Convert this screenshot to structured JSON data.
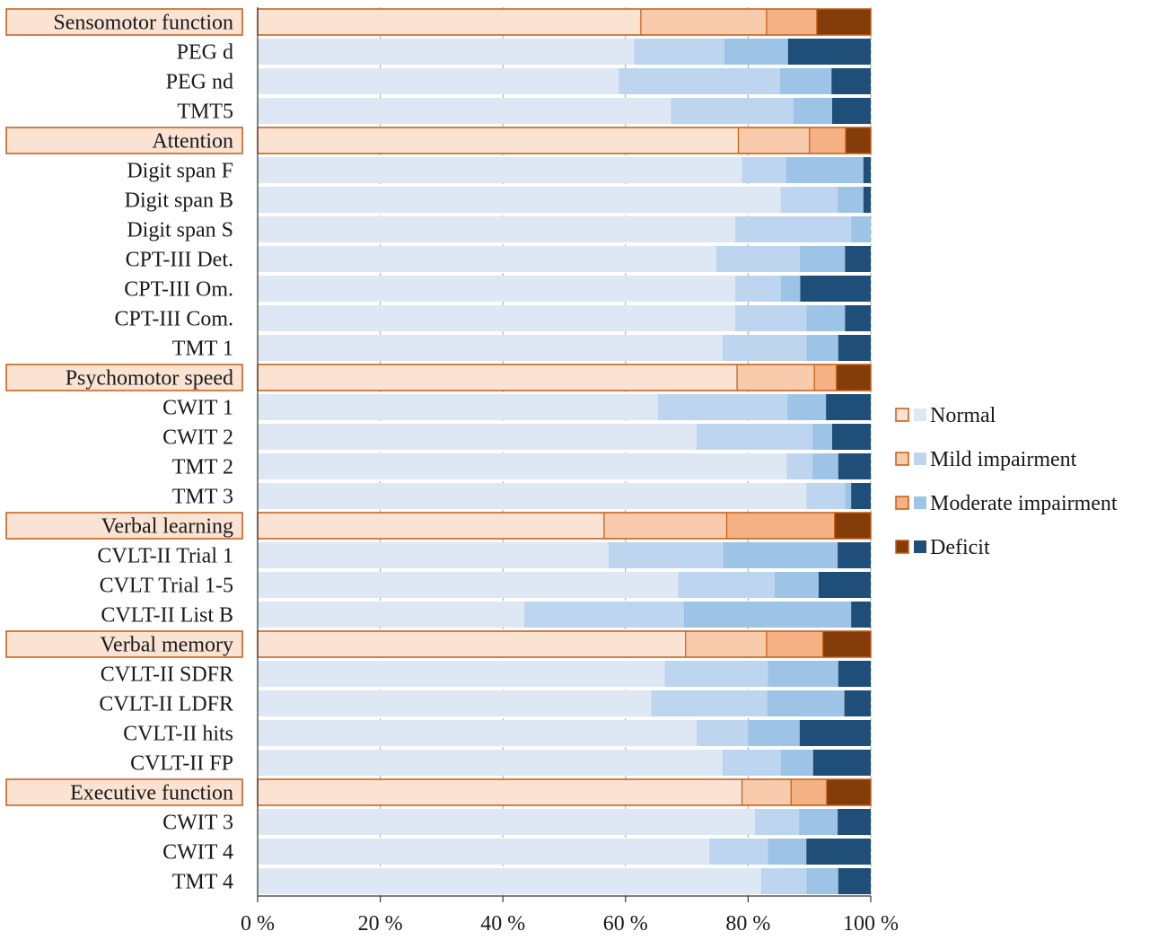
{
  "chart_data": {
    "type": "bar",
    "orientation": "horizontal",
    "stacked": true,
    "xlim": [
      0,
      100
    ],
    "x_ticks": [
      {
        "value": 0,
        "label": "0 %"
      },
      {
        "value": 20,
        "label": "20 %"
      },
      {
        "value": 40,
        "label": "40 %"
      },
      {
        "value": 60,
        "label": "60 %"
      },
      {
        "value": 80,
        "label": "80 %"
      },
      {
        "value": 100,
        "label": "100 %"
      }
    ],
    "grid": true,
    "series": [
      {
        "name": "Normal",
        "domain_color": "#fbe3d4",
        "test_color": "#dde8f4"
      },
      {
        "name": "Mild impairment",
        "domain_color": "#f8cbac",
        "test_color": "#bdd5ee"
      },
      {
        "name": "Moderate impairment",
        "domain_color": "#f4b183",
        "test_color": "#9dc3e6"
      },
      {
        "name": "Deficit",
        "domain_color": "#843c0b",
        "test_color": "#1f4e79"
      }
    ],
    "legend": {
      "position": "right"
    },
    "domain_border_color": "#c55a11",
    "categories": [
      {
        "label": "Sensomotor function",
        "domain": true,
        "values": [
          62.5,
          20.5,
          8.2,
          8.8
        ]
      },
      {
        "label": "PEG d",
        "domain": false,
        "values": [
          61.4,
          14.7,
          10.4,
          13.5
        ]
      },
      {
        "label": "PEG nd",
        "domain": false,
        "values": [
          58.9,
          26.3,
          8.4,
          6.4
        ]
      },
      {
        "label": "TMT5",
        "domain": false,
        "values": [
          67.4,
          20.0,
          6.3,
          6.3
        ]
      },
      {
        "label": "Attention",
        "domain": true,
        "values": [
          78.4,
          11.6,
          5.9,
          4.1
        ]
      },
      {
        "label": "Digit span F",
        "domain": false,
        "values": [
          79.0,
          7.2,
          12.6,
          1.2
        ]
      },
      {
        "label": "Digit span B",
        "domain": false,
        "values": [
          85.3,
          9.3,
          4.2,
          1.2
        ]
      },
      {
        "label": "Digit span S",
        "domain": false,
        "values": [
          77.9,
          18.9,
          3.2,
          0
        ]
      },
      {
        "label": "CPT-III Det.",
        "domain": false,
        "values": [
          74.8,
          13.6,
          7.4,
          4.2
        ]
      },
      {
        "label": "CPT-III Om.",
        "domain": false,
        "values": [
          77.9,
          7.4,
          3.2,
          11.5
        ]
      },
      {
        "label": "CPT-III Com.",
        "domain": false,
        "values": [
          77.9,
          11.6,
          6.3,
          4.2
        ]
      },
      {
        "label": "TMT 1",
        "domain": false,
        "values": [
          75.8,
          13.7,
          5.2,
          5.3
        ]
      },
      {
        "label": "Psychomotor speed",
        "domain": true,
        "values": [
          78.2,
          12.6,
          3.6,
          5.6
        ]
      },
      {
        "label": "CWIT 1",
        "domain": false,
        "values": [
          65.3,
          21.1,
          6.3,
          7.3
        ]
      },
      {
        "label": "CWIT 2",
        "domain": false,
        "values": [
          71.6,
          18.9,
          3.2,
          6.3
        ]
      },
      {
        "label": "TMT 2",
        "domain": false,
        "values": [
          86.3,
          4.2,
          4.2,
          5.3
        ]
      },
      {
        "label": "TMT 3",
        "domain": false,
        "values": [
          89.5,
          6.3,
          1.0,
          3.2
        ]
      },
      {
        "label": "Verbal learning",
        "domain": true,
        "values": [
          56.5,
          20.0,
          17.6,
          5.9
        ]
      },
      {
        "label": "CVLT-II Trial 1",
        "domain": false,
        "values": [
          57.2,
          18.7,
          18.7,
          5.4
        ]
      },
      {
        "label": "CVLT Trial 1-5",
        "domain": false,
        "values": [
          68.6,
          15.7,
          7.2,
          8.5
        ]
      },
      {
        "label": "CVLT-II List B",
        "domain": false,
        "values": [
          43.5,
          26.0,
          27.3,
          3.2
        ]
      },
      {
        "label": "Verbal memory",
        "domain": true,
        "values": [
          69.8,
          13.2,
          9.2,
          7.8
        ]
      },
      {
        "label": "CVLT-II SDFR",
        "domain": false,
        "values": [
          66.4,
          16.8,
          11.5,
          5.3
        ]
      },
      {
        "label": "CVLT-II LDFR",
        "domain": false,
        "values": [
          64.2,
          18.9,
          12.6,
          4.3
        ]
      },
      {
        "label": "CVLT-II hits",
        "domain": false,
        "values": [
          71.6,
          8.4,
          8.4,
          11.6
        ]
      },
      {
        "label": "CVLT-II FP",
        "domain": false,
        "values": [
          75.8,
          9.5,
          5.3,
          9.4
        ]
      },
      {
        "label": "Executive function",
        "domain": true,
        "values": [
          79.0,
          8.0,
          5.8,
          7.2
        ]
      },
      {
        "label": "CWIT 3",
        "domain": false,
        "values": [
          81.1,
          7.2,
          6.3,
          5.4
        ]
      },
      {
        "label": "CWIT 4",
        "domain": false,
        "values": [
          73.7,
          9.5,
          6.3,
          10.5
        ]
      },
      {
        "label": "TMT 4",
        "domain": false,
        "values": [
          82.1,
          7.4,
          5.2,
          5.3
        ]
      }
    ]
  }
}
